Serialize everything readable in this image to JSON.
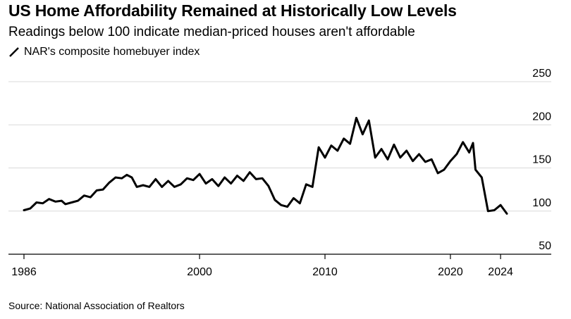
{
  "chart_data": {
    "type": "line",
    "title": "US Home Affordability Remained at Historically Low Levels",
    "subtitle": "Readings below 100 indicate median-priced houses aren't affordable",
    "legend": [
      {
        "label": "NAR's composite homebuyer index",
        "color": "#000000"
      }
    ],
    "source": "Source: National Association of Realtors",
    "xlabel": "",
    "ylabel": "",
    "xlim": [
      1986,
      2024.5
    ],
    "ylim": [
      50,
      250
    ],
    "x_ticks": [
      1986,
      2000,
      2010,
      2020,
      2024
    ],
    "y_ticks": [
      50,
      100,
      150,
      200,
      250
    ],
    "series": [
      {
        "name": "NAR's composite homebuyer index",
        "color": "#000000",
        "points": [
          [
            1986.0,
            101
          ],
          [
            1986.5,
            103
          ],
          [
            1987.0,
            110
          ],
          [
            1987.5,
            109
          ],
          [
            1988.0,
            114
          ],
          [
            1988.5,
            111
          ],
          [
            1989.0,
            112
          ],
          [
            1989.3,
            108
          ],
          [
            1989.8,
            110
          ],
          [
            1990.3,
            112
          ],
          [
            1990.8,
            118
          ],
          [
            1991.3,
            116
          ],
          [
            1991.8,
            124
          ],
          [
            1992.3,
            125
          ],
          [
            1992.8,
            133
          ],
          [
            1993.3,
            139
          ],
          [
            1993.8,
            138
          ],
          [
            1994.2,
            142
          ],
          [
            1994.6,
            139
          ],
          [
            1995.0,
            128
          ],
          [
            1995.5,
            130
          ],
          [
            1996.0,
            128
          ],
          [
            1996.5,
            137
          ],
          [
            1997.0,
            128
          ],
          [
            1997.5,
            135
          ],
          [
            1998.0,
            128
          ],
          [
            1998.5,
            131
          ],
          [
            1999.0,
            138
          ],
          [
            1999.5,
            136
          ],
          [
            2000.0,
            143
          ],
          [
            2000.5,
            132
          ],
          [
            2001.0,
            137
          ],
          [
            2001.5,
            129
          ],
          [
            2002.0,
            139
          ],
          [
            2002.5,
            132
          ],
          [
            2003.0,
            141
          ],
          [
            2003.5,
            135
          ],
          [
            2004.0,
            145
          ],
          [
            2004.5,
            137
          ],
          [
            2005.0,
            138
          ],
          [
            2005.5,
            129
          ],
          [
            2006.0,
            113
          ],
          [
            2006.5,
            107
          ],
          [
            2007.0,
            105
          ],
          [
            2007.5,
            115
          ],
          [
            2008.0,
            109
          ],
          [
            2008.5,
            131
          ],
          [
            2009.0,
            128
          ],
          [
            2009.5,
            174
          ],
          [
            2010.0,
            162
          ],
          [
            2010.5,
            176
          ],
          [
            2011.0,
            170
          ],
          [
            2011.5,
            184
          ],
          [
            2012.0,
            178
          ],
          [
            2012.5,
            208
          ],
          [
            2013.0,
            189
          ],
          [
            2013.5,
            205
          ],
          [
            2014.0,
            162
          ],
          [
            2014.5,
            172
          ],
          [
            2015.0,
            160
          ],
          [
            2015.5,
            177
          ],
          [
            2016.0,
            162
          ],
          [
            2016.5,
            170
          ],
          [
            2017.0,
            158
          ],
          [
            2017.5,
            166
          ],
          [
            2018.0,
            157
          ],
          [
            2018.5,
            160
          ],
          [
            2019.0,
            144
          ],
          [
            2019.5,
            148
          ],
          [
            2020.0,
            158
          ],
          [
            2020.5,
            166
          ],
          [
            2021.0,
            180
          ],
          [
            2021.5,
            168
          ],
          [
            2021.8,
            179
          ],
          [
            2022.0,
            148
          ],
          [
            2022.5,
            139
          ],
          [
            2023.0,
            100
          ],
          [
            2023.5,
            101
          ],
          [
            2024.0,
            107
          ],
          [
            2024.5,
            97
          ]
        ]
      }
    ]
  }
}
